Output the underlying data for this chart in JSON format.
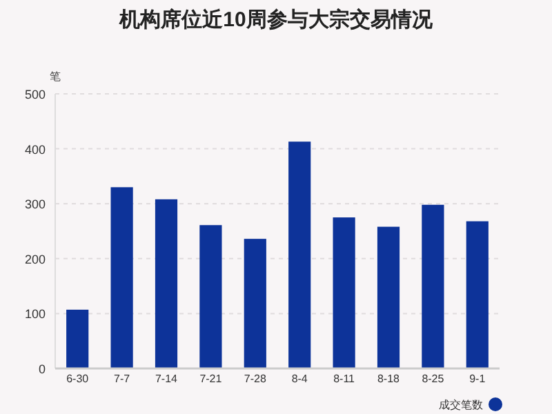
{
  "chart_data": {
    "type": "bar",
    "title": "机构席位近10周参与大宗交易情况",
    "ylabel": "笔",
    "categories": [
      "6-30",
      "7-7",
      "7-14",
      "7-21",
      "7-28",
      "8-4",
      "8-11",
      "8-18",
      "8-25",
      "9-1"
    ],
    "series": [
      {
        "name": "成交笔数",
        "color": "#0d3399",
        "values": [
          107,
          330,
          308,
          261,
          236,
          413,
          275,
          258,
          298,
          268
        ]
      }
    ],
    "ylim": [
      0,
      500
    ],
    "yticks": [
      0,
      100,
      200,
      300,
      400,
      500
    ],
    "grid": "y",
    "legend": "bottom right"
  }
}
